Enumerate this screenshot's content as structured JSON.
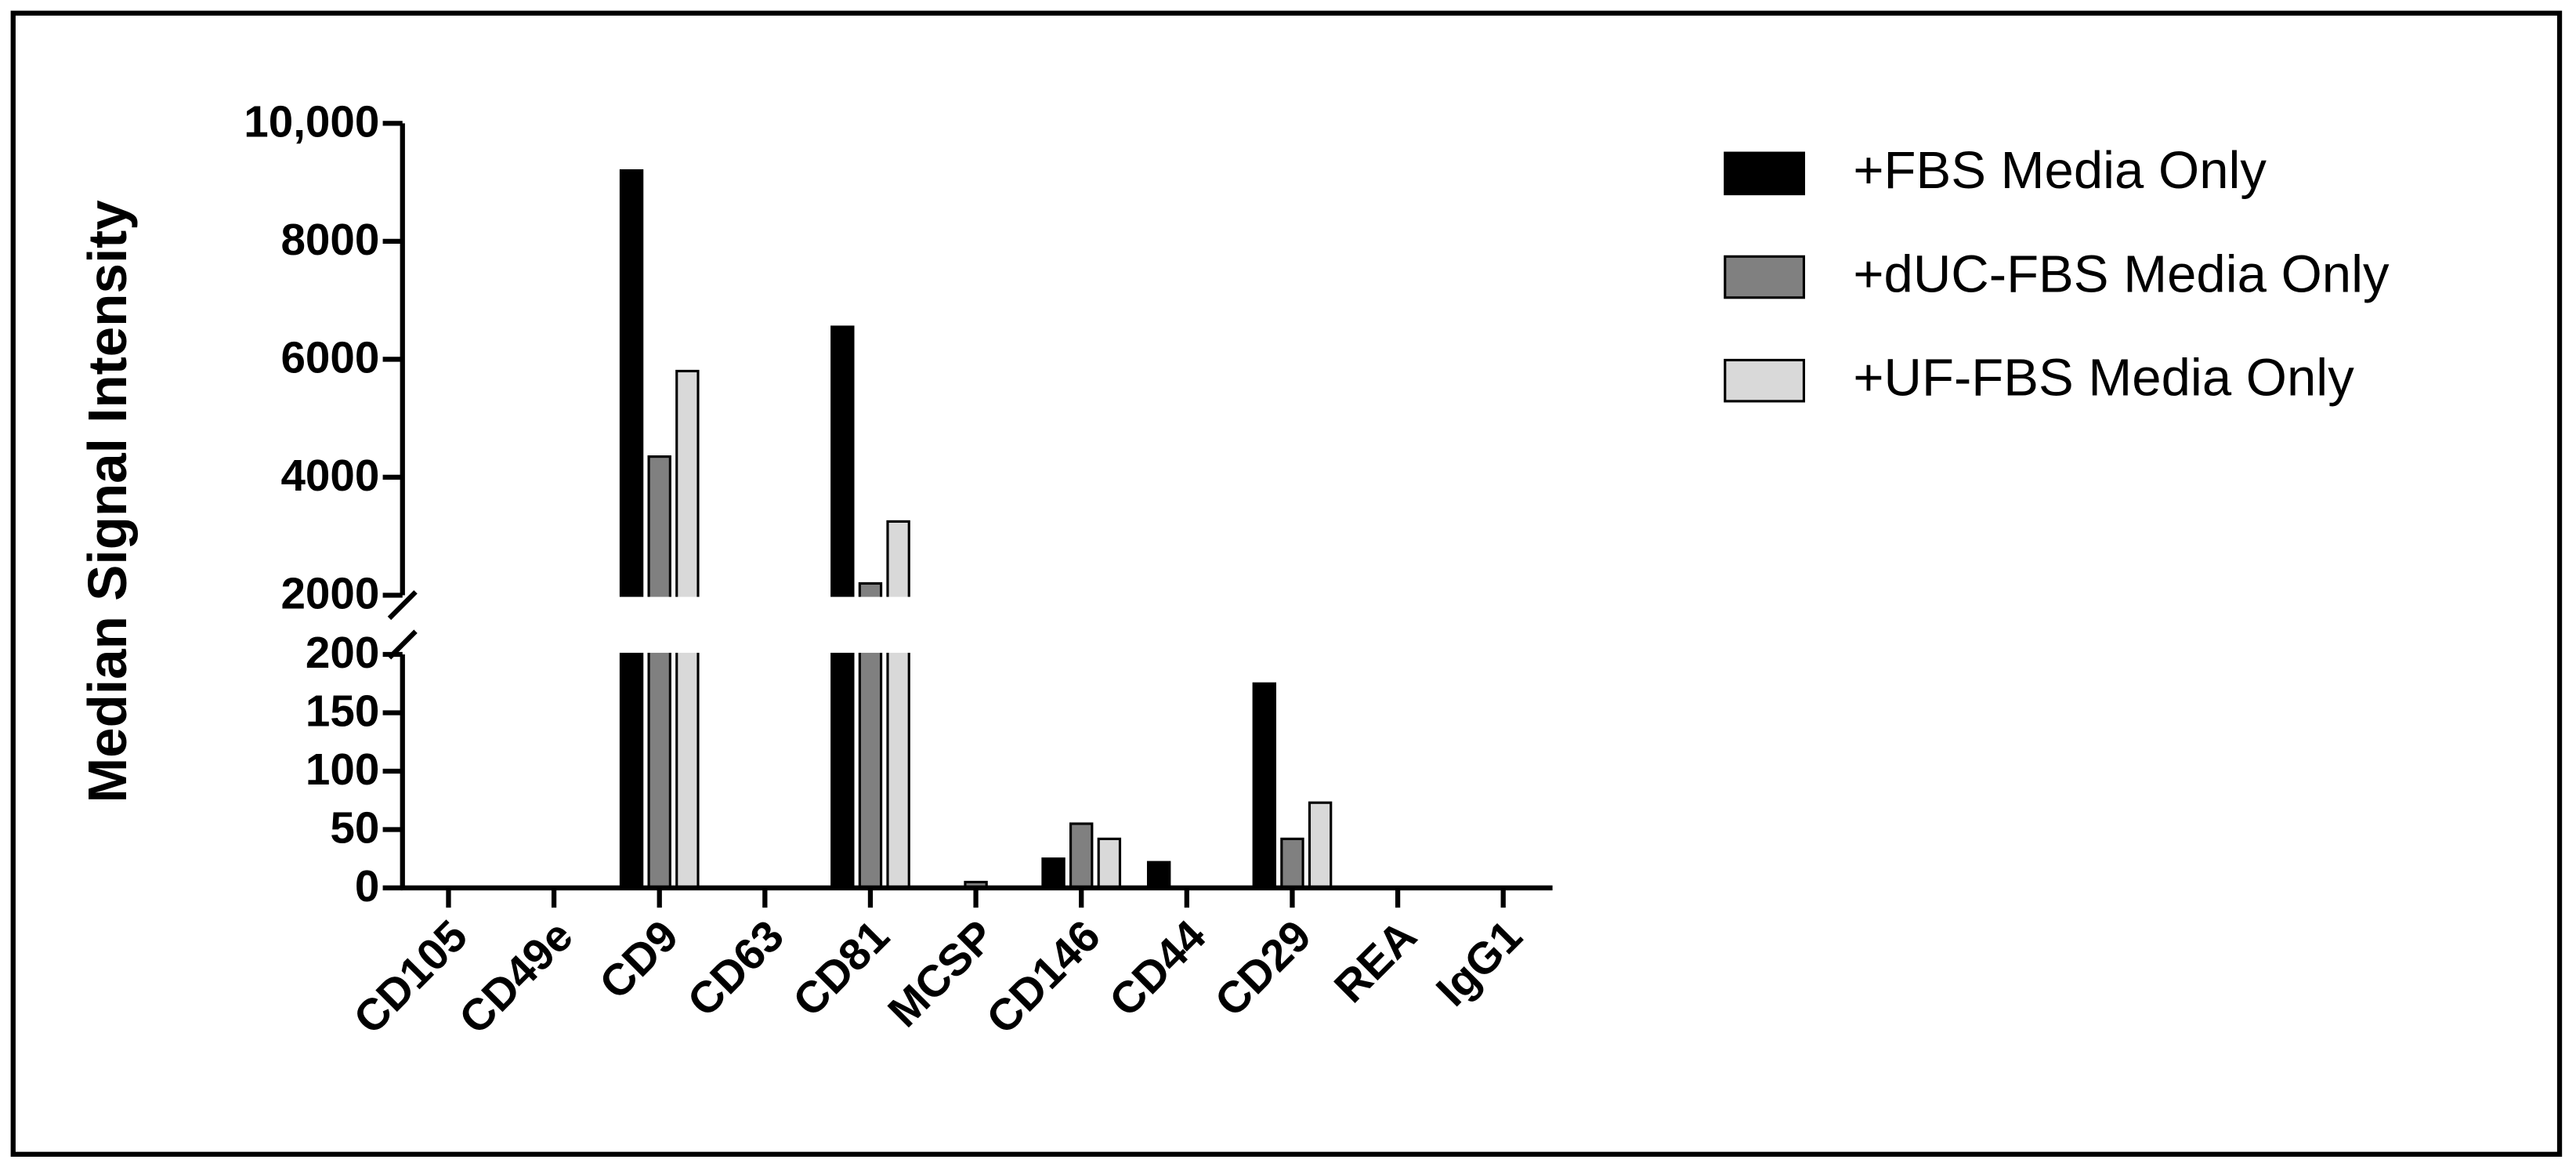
{
  "chart_data": {
    "type": "bar",
    "y_label": "Median Signal Intensity",
    "categories": [
      "CD105",
      "CD49e",
      "CD9",
      "CD63",
      "CD81",
      "MCSP",
      "CD146",
      "CD44",
      "CD29",
      "REA",
      "IgG1"
    ],
    "series": [
      {
        "name": "+FBS Media Only",
        "color": "#000000",
        "values": [
          0,
          0,
          9200,
          0,
          6550,
          0,
          25,
          22,
          175,
          0,
          0
        ]
      },
      {
        "name": "+dUC-FBS Media Only",
        "color": "#808080",
        "values": [
          0,
          0,
          4350,
          0,
          2200,
          5,
          55,
          0,
          42,
          0,
          0
        ]
      },
      {
        "name": "+UF-FBS Media Only",
        "color": "#d9d9d9",
        "values": [
          0,
          0,
          5800,
          0,
          3250,
          0,
          42,
          0,
          73,
          0,
          0
        ]
      }
    ],
    "axis_segments": [
      {
        "ylim": [
          0,
          200
        ],
        "yticks": [
          0,
          50,
          100,
          150,
          200
        ]
      },
      {
        "ylim": [
          2000,
          10000
        ],
        "yticks": [
          2000,
          4000,
          6000,
          8000,
          {
            "value": 10000,
            "label": "10,000"
          }
        ]
      }
    ],
    "legend": "upper right"
  }
}
